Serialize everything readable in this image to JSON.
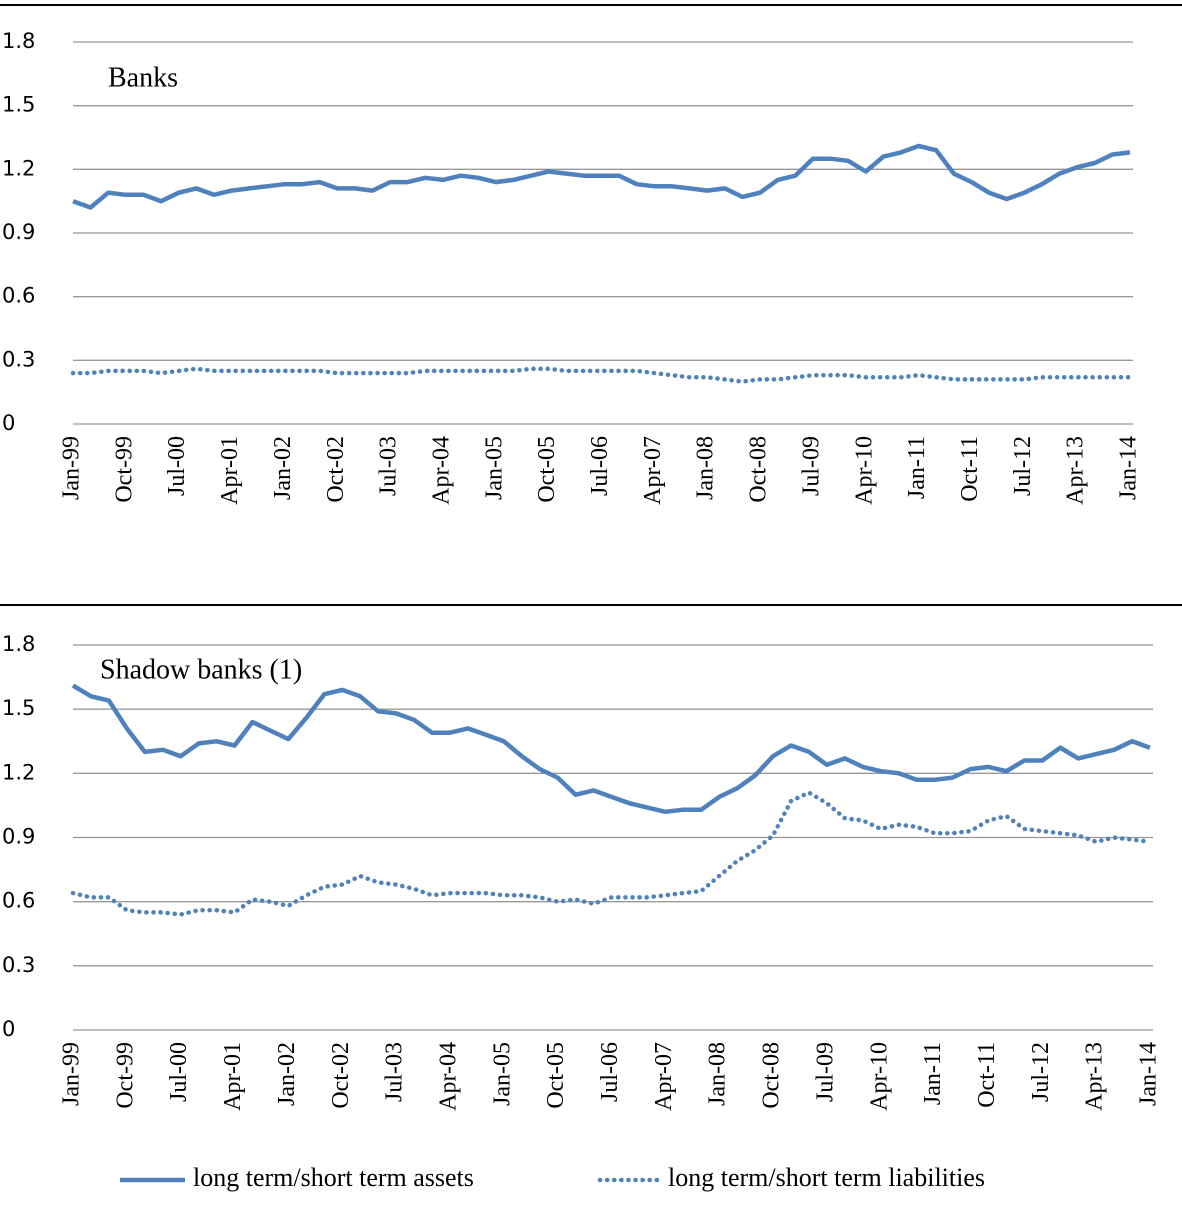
{
  "chart_data": [
    {
      "type": "line",
      "annotation": "Banks",
      "categories": [
        "Jan-99",
        null,
        null,
        "Oct-99",
        null,
        null,
        "Jul-00",
        null,
        null,
        "Apr-01",
        null,
        null,
        "Jan-02",
        null,
        null,
        "Oct-02",
        null,
        null,
        "Jul-03",
        null,
        null,
        "Apr-04",
        null,
        null,
        "Jan-05",
        null,
        null,
        "Oct-05",
        null,
        null,
        "Jul-06",
        null,
        null,
        "Apr-07",
        null,
        null,
        "Jan-08",
        null,
        null,
        "Oct-08",
        null,
        null,
        "Jul-09",
        null,
        null,
        "Apr-10",
        null,
        null,
        "Jan-11",
        null,
        null,
        "Oct-11",
        null,
        null,
        "Jul-12",
        null,
        null,
        "Apr-13",
        null,
        null,
        "Jan-14"
      ],
      "series": [
        {
          "color": "#4f81bd",
          "style": "solid",
          "values": [
            1.05,
            1.02,
            1.09,
            1.08,
            1.08,
            1.05,
            1.09,
            1.11,
            1.08,
            1.1,
            1.11,
            1.12,
            1.13,
            1.13,
            1.14,
            1.11,
            1.11,
            1.1,
            1.14,
            1.14,
            1.16,
            1.15,
            1.17,
            1.16,
            1.14,
            1.15,
            1.17,
            1.19,
            1.18,
            1.17,
            1.17,
            1.17,
            1.13,
            1.12,
            1.12,
            1.11,
            1.1,
            1.11,
            1.07,
            1.09,
            1.15,
            1.17,
            1.25,
            1.25,
            1.24,
            1.19,
            1.26,
            1.28,
            1.31,
            1.29,
            1.18,
            1.14,
            1.09,
            1.06,
            1.09,
            1.13,
            1.18,
            1.21,
            1.23,
            1.27,
            1.28
          ]
        },
        {
          "color": "#4f81bd",
          "style": "dotted",
          "values": [
            0.24,
            0.24,
            0.25,
            0.25,
            0.25,
            0.24,
            0.25,
            0.26,
            0.25,
            0.25,
            0.25,
            0.25,
            0.25,
            0.25,
            0.25,
            0.24,
            0.24,
            0.24,
            0.24,
            0.24,
            0.25,
            0.25,
            0.25,
            0.25,
            0.25,
            0.25,
            0.26,
            0.26,
            0.25,
            0.25,
            0.25,
            0.25,
            0.25,
            0.24,
            0.23,
            0.22,
            0.22,
            0.21,
            0.2,
            0.21,
            0.21,
            0.22,
            0.23,
            0.23,
            0.23,
            0.22,
            0.22,
            0.22,
            0.23,
            0.22,
            0.21,
            0.21,
            0.21,
            0.21,
            0.21,
            0.22,
            0.22,
            0.22,
            0.22,
            0.22,
            0.22
          ]
        }
      ],
      "ylim": [
        0,
        1.8
      ],
      "yticks": [
        0,
        0.3,
        0.6,
        0.9,
        1.2,
        1.5,
        1.8
      ],
      "grid": true
    },
    {
      "type": "line",
      "annotation": "Shadow banks (1)",
      "categories": [
        "Jan-99",
        null,
        null,
        "Oct-99",
        null,
        null,
        "Jul-00",
        null,
        null,
        "Apr-01",
        null,
        null,
        "Jan-02",
        null,
        null,
        "Oct-02",
        null,
        null,
        "Jul-03",
        null,
        null,
        "Apr-04",
        null,
        null,
        "Jan-05",
        null,
        null,
        "Oct-05",
        null,
        null,
        "Jul-06",
        null,
        null,
        "Apr-07",
        null,
        null,
        "Jan-08",
        null,
        null,
        "Oct-08",
        null,
        null,
        "Jul-09",
        null,
        null,
        "Apr-10",
        null,
        null,
        "Jan-11",
        null,
        null,
        "Oct-11",
        null,
        null,
        "Jul-12",
        null,
        null,
        "Apr-13",
        null,
        null,
        "Jan-14"
      ],
      "series": [
        {
          "name": "long term/short term assets",
          "color": "#4f81bd",
          "style": "solid",
          "values": [
            1.61,
            1.56,
            1.54,
            1.41,
            1.3,
            1.31,
            1.28,
            1.34,
            1.35,
            1.33,
            1.44,
            1.4,
            1.36,
            1.46,
            1.57,
            1.59,
            1.56,
            1.49,
            1.48,
            1.45,
            1.39,
            1.39,
            1.41,
            1.38,
            1.35,
            1.28,
            1.22,
            1.18,
            1.1,
            1.12,
            1.09,
            1.06,
            1.04,
            1.02,
            1.03,
            1.03,
            1.09,
            1.13,
            1.19,
            1.28,
            1.33,
            1.3,
            1.24,
            1.27,
            1.23,
            1.21,
            1.2,
            1.17,
            1.17,
            1.18,
            1.22,
            1.23,
            1.21,
            1.26,
            1.26,
            1.32,
            1.27,
            1.29,
            1.31,
            1.35,
            1.32
          ]
        },
        {
          "name": "long term/short term liabilities",
          "color": "#4f81bd",
          "style": "dotted",
          "values": [
            0.64,
            0.62,
            0.62,
            0.56,
            0.55,
            0.55,
            0.54,
            0.56,
            0.56,
            0.55,
            0.61,
            0.6,
            0.58,
            0.63,
            0.67,
            0.68,
            0.72,
            0.69,
            0.68,
            0.66,
            0.63,
            0.64,
            0.64,
            0.64,
            0.63,
            0.63,
            0.62,
            0.6,
            0.61,
            0.59,
            0.62,
            0.62,
            0.62,
            0.63,
            0.64,
            0.65,
            0.72,
            0.79,
            0.84,
            0.91,
            1.07,
            1.11,
            1.06,
            0.99,
            0.98,
            0.94,
            0.96,
            0.95,
            0.92,
            0.92,
            0.93,
            0.98,
            1.0,
            0.94,
            0.93,
            0.92,
            0.91,
            0.88,
            0.9,
            0.89,
            0.88
          ]
        }
      ],
      "ylim": [
        0,
        1.8
      ],
      "yticks": [
        0,
        0.3,
        0.6,
        0.9,
        1.2,
        1.5,
        1.8
      ],
      "grid": true,
      "legend": "bottom"
    }
  ]
}
